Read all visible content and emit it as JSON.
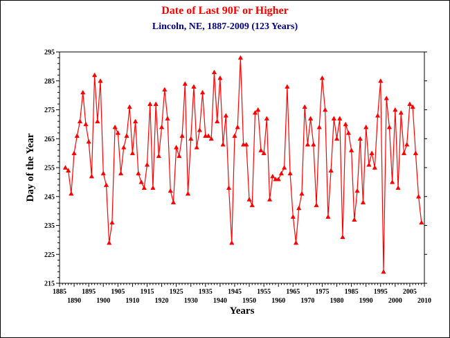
{
  "colors": {
    "title": "#ff0000",
    "subtitle": "#000080",
    "series": "#ff0000",
    "axis": "#000000"
  },
  "chart_data": {
    "type": "line",
    "title": "Date of Last 90F or Higher",
    "subtitle": "Lincoln, NE, 1887-2009 (123 Years)",
    "xlabel": "Years",
    "ylabel": "Day of the Year",
    "xlim": [
      1885,
      2010
    ],
    "ylim": [
      215,
      295
    ],
    "x_ticks_upper": [
      "1885",
      "1895",
      "1905",
      "1915",
      "1925",
      "1935",
      "1945",
      "1955",
      "1965",
      "1975",
      "1985",
      "1995",
      "2005"
    ],
    "x_ticks_lower": [
      "1890",
      "1900",
      "1910",
      "1920",
      "1930",
      "1940",
      "1950",
      "1960",
      "1970",
      "1980",
      "1990",
      "2000",
      "2010"
    ],
    "y_ticks": [
      "215",
      "225",
      "235",
      "245",
      "255",
      "265",
      "275",
      "285",
      "295"
    ],
    "grid": false,
    "marker": "triangle",
    "x": [
      1887,
      1888,
      1889,
      1890,
      1891,
      1892,
      1893,
      1894,
      1895,
      1896,
      1897,
      1898,
      1899,
      1900,
      1901,
      1902,
      1903,
      1904,
      1905,
      1906,
      1907,
      1908,
      1909,
      1910,
      1911,
      1912,
      1913,
      1914,
      1915,
      1916,
      1917,
      1918,
      1919,
      1920,
      1921,
      1922,
      1923,
      1924,
      1925,
      1926,
      1927,
      1928,
      1929,
      1930,
      1931,
      1932,
      1933,
      1934,
      1935,
      1936,
      1937,
      1938,
      1939,
      1940,
      1941,
      1942,
      1943,
      1944,
      1945,
      1946,
      1947,
      1948,
      1949,
      1950,
      1951,
      1952,
      1953,
      1954,
      1955,
      1956,
      1957,
      1958,
      1959,
      1960,
      1961,
      1962,
      1963,
      1964,
      1965,
      1966,
      1967,
      1968,
      1969,
      1970,
      1971,
      1972,
      1973,
      1974,
      1975,
      1976,
      1977,
      1978,
      1979,
      1980,
      1981,
      1982,
      1983,
      1984,
      1985,
      1986,
      1987,
      1988,
      1989,
      1990,
      1991,
      1992,
      1993,
      1994,
      1995,
      1996,
      1997,
      1998,
      1999,
      2000,
      2001,
      2002,
      2003,
      2004,
      2005,
      2006,
      2007,
      2008,
      2009
    ],
    "series": [
      {
        "values": [
          255,
          254,
          246,
          260,
          266,
          271,
          281,
          270,
          264,
          252,
          287,
          271,
          285,
          253,
          249,
          229,
          236,
          269,
          267,
          253,
          262,
          266,
          276,
          260,
          271,
          253,
          250,
          248,
          256,
          277,
          248,
          277,
          259,
          269,
          282,
          272,
          247,
          243,
          262,
          259,
          266,
          284,
          246,
          265,
          283,
          262,
          268,
          281,
          266,
          266,
          265,
          288,
          271,
          286,
          263,
          273,
          248,
          229,
          266,
          269,
          293,
          263,
          263,
          244,
          242,
          274,
          275,
          261,
          260,
          272,
          244,
          252,
          251,
          251,
          253,
          255,
          283,
          253,
          238,
          229,
          241,
          246,
          276,
          263,
          272,
          263,
          242,
          269,
          286,
          275,
          238,
          254,
          272,
          265,
          272,
          231,
          270,
          267,
          261,
          237,
          247,
          265,
          243,
          269,
          256,
          260,
          255,
          273,
          285,
          219,
          279,
          269,
          250,
          275,
          248,
          274,
          260,
          263,
          277,
          276,
          260,
          245,
          236
        ]
      }
    ]
  }
}
